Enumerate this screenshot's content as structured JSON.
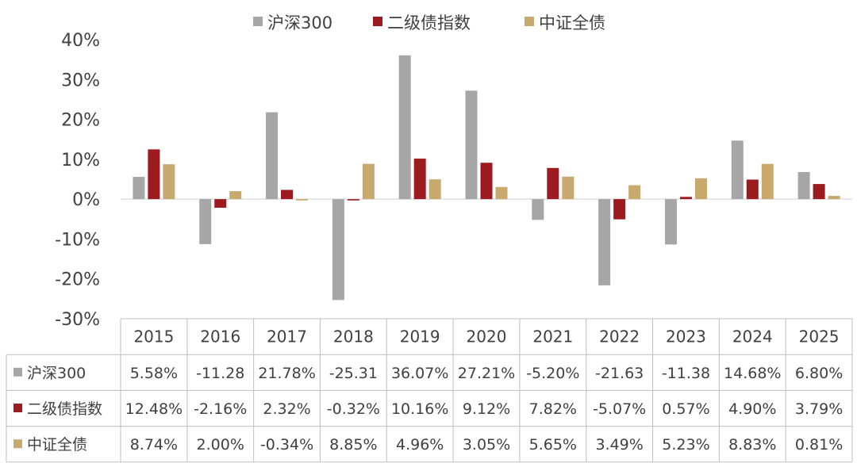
{
  "chart_data": {
    "type": "bar",
    "title": "",
    "xlabel": "",
    "ylabel": "",
    "ylim": [
      -30,
      40
    ],
    "y_ticks": [
      {
        "value": 40,
        "label": "40%"
      },
      {
        "value": 30,
        "label": "30%"
      },
      {
        "value": 20,
        "label": "20%"
      },
      {
        "value": 10,
        "label": "10%"
      },
      {
        "value": 0,
        "label": "0%"
      },
      {
        "value": -10,
        "label": "-10%"
      },
      {
        "value": -20,
        "label": "-20%"
      },
      {
        "value": -30,
        "label": "-30%"
      }
    ],
    "categories": [
      "2015",
      "2016",
      "2017",
      "2018",
      "2019",
      "2020",
      "2021",
      "2022",
      "2023",
      "2024",
      "2025"
    ],
    "legend_position": "top-center",
    "series": [
      {
        "name": "沪深300",
        "color": "#a6a6a6",
        "values": [
          5.58,
          -11.28,
          21.78,
          -25.31,
          36.07,
          27.21,
          -5.2,
          -21.63,
          -11.38,
          14.68,
          6.8
        ],
        "labels": [
          "5.58%",
          "-11.28",
          "21.78%",
          "-25.31",
          "36.07%",
          "27.21%",
          "-5.20%",
          "-21.63",
          "-11.38",
          "14.68%",
          "6.80%"
        ]
      },
      {
        "name": "二级债指数",
        "color": "#9b1b1f",
        "values": [
          12.48,
          -2.16,
          2.32,
          -0.32,
          10.16,
          9.12,
          7.82,
          -5.07,
          0.57,
          4.9,
          3.79
        ],
        "labels": [
          "12.48%",
          "-2.16%",
          "2.32%",
          "-0.32%",
          "10.16%",
          "9.12%",
          "7.82%",
          "-5.07%",
          "0.57%",
          "4.90%",
          "3.79%"
        ]
      },
      {
        "name": "中证全债",
        "color": "#c8a96e",
        "values": [
          8.74,
          2.0,
          -0.34,
          8.85,
          4.96,
          3.05,
          5.65,
          3.49,
          5.23,
          8.83,
          0.81
        ],
        "labels": [
          "8.74%",
          "2.00%",
          "-0.34%",
          "8.85%",
          "4.96%",
          "3.05%",
          "5.65%",
          "3.49%",
          "5.23%",
          "8.83%",
          "0.81%"
        ]
      }
    ]
  }
}
